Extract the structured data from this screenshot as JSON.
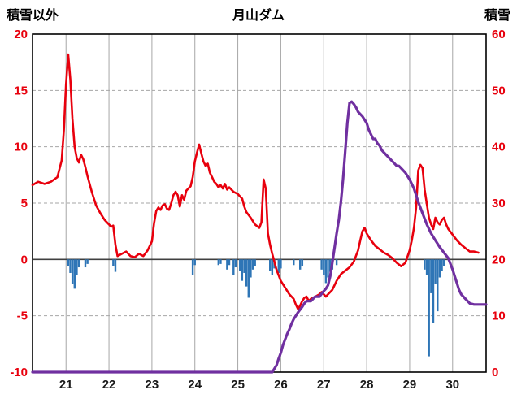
{
  "header": {
    "left_axis_title": "積雪以外",
    "title": "月山ダム",
    "right_axis_title": "積雪"
  },
  "colors": {
    "red_line": "#e8000d",
    "purple_line": "#7030a0",
    "blue_bar": "#2e75b6",
    "grid": "#a6a6a6",
    "zero_line": "#404040",
    "border": "#000000",
    "left_tick_label": "#e8000d",
    "right_tick_label": "#e8000d",
    "x_tick_label": "#1a1a1a"
  },
  "chart_data": {
    "type": "line",
    "title": "月山ダム",
    "left_axis": {
      "label": "積雪以外",
      "min": -10,
      "max": 20,
      "ticks": [
        20,
        15,
        10,
        5,
        0,
        -5,
        -10
      ],
      "tick_labels": [
        "20",
        "15",
        "10",
        "5",
        "0",
        "-5",
        "-10"
      ]
    },
    "right_axis": {
      "label": "積雪",
      "min": 0,
      "max": 60,
      "tick_labels": [
        "60",
        "50",
        "40",
        "30",
        "20",
        "10",
        "0"
      ]
    },
    "x_axis": {
      "min": 20.22,
      "max": 30.78,
      "ticks": [
        21,
        22,
        23,
        24,
        25,
        26,
        27,
        28,
        29,
        30
      ],
      "tick_labels": [
        "21",
        "22",
        "23",
        "24",
        "25",
        "26",
        "27",
        "28",
        "29",
        "30"
      ]
    },
    "grid": {
      "vertical": "solid",
      "horizontal": "dashed",
      "zero_line": "solid"
    },
    "legend": "none",
    "series": [
      {
        "name": "red-line",
        "type": "line",
        "axis": "left",
        "color": "#e8000d",
        "points": [
          [
            20.22,
            6.6
          ],
          [
            20.35,
            6.9
          ],
          [
            20.5,
            6.7
          ],
          [
            20.65,
            6.9
          ],
          [
            20.8,
            7.3
          ],
          [
            20.9,
            8.8
          ],
          [
            20.95,
            11.5
          ],
          [
            21.0,
            15.5
          ],
          [
            21.05,
            18.2
          ],
          [
            21.1,
            16.0
          ],
          [
            21.15,
            12.5
          ],
          [
            21.2,
            10.0
          ],
          [
            21.25,
            9.0
          ],
          [
            21.3,
            8.6
          ],
          [
            21.35,
            9.3
          ],
          [
            21.4,
            8.9
          ],
          [
            21.45,
            8.2
          ],
          [
            21.5,
            7.4
          ],
          [
            21.6,
            6.0
          ],
          [
            21.7,
            4.8
          ],
          [
            21.8,
            4.1
          ],
          [
            21.9,
            3.5
          ],
          [
            22.0,
            3.1
          ],
          [
            22.05,
            2.9
          ],
          [
            22.1,
            3.0
          ],
          [
            22.15,
            1.3
          ],
          [
            22.2,
            0.3
          ],
          [
            22.3,
            0.5
          ],
          [
            22.4,
            0.7
          ],
          [
            22.5,
            0.3
          ],
          [
            22.6,
            0.2
          ],
          [
            22.7,
            0.5
          ],
          [
            22.8,
            0.3
          ],
          [
            22.9,
            0.8
          ],
          [
            23.0,
            1.6
          ],
          [
            23.05,
            3.2
          ],
          [
            23.1,
            4.3
          ],
          [
            23.15,
            4.6
          ],
          [
            23.2,
            4.4
          ],
          [
            23.25,
            4.8
          ],
          [
            23.3,
            4.9
          ],
          [
            23.35,
            4.5
          ],
          [
            23.4,
            4.4
          ],
          [
            23.45,
            5.0
          ],
          [
            23.5,
            5.7
          ],
          [
            23.55,
            6.0
          ],
          [
            23.6,
            5.7
          ],
          [
            23.65,
            4.7
          ],
          [
            23.7,
            5.7
          ],
          [
            23.75,
            5.3
          ],
          [
            23.8,
            6.1
          ],
          [
            23.85,
            6.3
          ],
          [
            23.9,
            6.5
          ],
          [
            23.95,
            7.3
          ],
          [
            24.0,
            8.7
          ],
          [
            24.05,
            9.5
          ],
          [
            24.1,
            10.2
          ],
          [
            24.15,
            9.4
          ],
          [
            24.2,
            8.7
          ],
          [
            24.25,
            8.3
          ],
          [
            24.3,
            8.5
          ],
          [
            24.35,
            7.7
          ],
          [
            24.4,
            7.3
          ],
          [
            24.45,
            6.9
          ],
          [
            24.5,
            6.7
          ],
          [
            24.55,
            6.4
          ],
          [
            24.6,
            6.6
          ],
          [
            24.65,
            6.3
          ],
          [
            24.7,
            6.7
          ],
          [
            24.75,
            6.2
          ],
          [
            24.8,
            6.4
          ],
          [
            24.9,
            6.0
          ],
          [
            25.0,
            5.8
          ],
          [
            25.05,
            5.6
          ],
          [
            25.1,
            5.4
          ],
          [
            25.15,
            4.7
          ],
          [
            25.2,
            4.2
          ],
          [
            25.3,
            3.7
          ],
          [
            25.4,
            3.1
          ],
          [
            25.5,
            2.8
          ],
          [
            25.55,
            3.3
          ],
          [
            25.6,
            7.1
          ],
          [
            25.65,
            6.3
          ],
          [
            25.7,
            2.3
          ],
          [
            25.75,
            1.3
          ],
          [
            25.8,
            0.5
          ],
          [
            25.85,
            -0.2
          ],
          [
            25.9,
            -0.9
          ],
          [
            26.0,
            -1.9
          ],
          [
            26.1,
            -2.5
          ],
          [
            26.2,
            -3.1
          ],
          [
            26.3,
            -3.5
          ],
          [
            26.35,
            -4.0
          ],
          [
            26.4,
            -4.4
          ],
          [
            26.45,
            -4.1
          ],
          [
            26.5,
            -3.7
          ],
          [
            26.55,
            -3.4
          ],
          [
            26.6,
            -3.3
          ],
          [
            26.65,
            -3.7
          ],
          [
            26.7,
            -3.5
          ],
          [
            26.8,
            -3.3
          ],
          [
            26.9,
            -3.1
          ],
          [
            26.95,
            -2.9
          ],
          [
            27.0,
            -3.1
          ],
          [
            27.05,
            -3.3
          ],
          [
            27.1,
            -3.1
          ],
          [
            27.2,
            -2.7
          ],
          [
            27.3,
            -1.9
          ],
          [
            27.4,
            -1.3
          ],
          [
            27.5,
            -1.0
          ],
          [
            27.6,
            -0.7
          ],
          [
            27.7,
            -0.2
          ],
          [
            27.8,
            0.8
          ],
          [
            27.85,
            1.7
          ],
          [
            27.9,
            2.5
          ],
          [
            27.95,
            2.8
          ],
          [
            28.0,
            2.3
          ],
          [
            28.1,
            1.7
          ],
          [
            28.2,
            1.2
          ],
          [
            28.3,
            0.9
          ],
          [
            28.4,
            0.6
          ],
          [
            28.5,
            0.4
          ],
          [
            28.6,
            0.1
          ],
          [
            28.7,
            -0.3
          ],
          [
            28.8,
            -0.6
          ],
          [
            28.9,
            -0.3
          ],
          [
            29.0,
            0.8
          ],
          [
            29.05,
            1.7
          ],
          [
            29.1,
            2.8
          ],
          [
            29.15,
            4.6
          ],
          [
            29.2,
            7.9
          ],
          [
            29.25,
            8.4
          ],
          [
            29.3,
            8.1
          ],
          [
            29.35,
            6.2
          ],
          [
            29.4,
            4.9
          ],
          [
            29.45,
            3.7
          ],
          [
            29.5,
            3.1
          ],
          [
            29.55,
            2.7
          ],
          [
            29.6,
            3.7
          ],
          [
            29.65,
            3.3
          ],
          [
            29.7,
            3.1
          ],
          [
            29.75,
            3.5
          ],
          [
            29.8,
            3.7
          ],
          [
            29.85,
            3.1
          ],
          [
            29.9,
            2.7
          ],
          [
            30.0,
            2.2
          ],
          [
            30.1,
            1.7
          ],
          [
            30.2,
            1.3
          ],
          [
            30.3,
            1.0
          ],
          [
            30.4,
            0.7
          ],
          [
            30.5,
            0.7
          ],
          [
            30.6,
            0.6
          ]
        ]
      },
      {
        "name": "purple-line",
        "type": "line",
        "axis": "right",
        "color": "#7030a0",
        "points": [
          [
            20.22,
            -10
          ],
          [
            25.8,
            -10
          ],
          [
            25.9,
            -9.4
          ],
          [
            25.95,
            -8.8
          ],
          [
            26.0,
            -8.3
          ],
          [
            26.05,
            -7.6
          ],
          [
            26.1,
            -7.1
          ],
          [
            26.15,
            -6.6
          ],
          [
            26.2,
            -6.2
          ],
          [
            26.25,
            -5.7
          ],
          [
            26.3,
            -5.3
          ],
          [
            26.4,
            -4.7
          ],
          [
            26.5,
            -4.2
          ],
          [
            26.55,
            -3.9
          ],
          [
            26.6,
            -3.7
          ],
          [
            26.7,
            -3.7
          ],
          [
            26.8,
            -3.3
          ],
          [
            26.9,
            -3.3
          ],
          [
            27.0,
            -2.8
          ],
          [
            27.05,
            -2.6
          ],
          [
            27.1,
            -2.3
          ],
          [
            27.15,
            -1.5
          ],
          [
            27.2,
            -0.3
          ],
          [
            27.25,
            1.0
          ],
          [
            27.3,
            2.3
          ],
          [
            27.35,
            3.5
          ],
          [
            27.4,
            5.1
          ],
          [
            27.45,
            7.1
          ],
          [
            27.5,
            9.6
          ],
          [
            27.55,
            12.1
          ],
          [
            27.6,
            13.9
          ],
          [
            27.65,
            14.0
          ],
          [
            27.7,
            13.8
          ],
          [
            27.75,
            13.5
          ],
          [
            27.8,
            13.1
          ],
          [
            27.9,
            12.7
          ],
          [
            28.0,
            12.1
          ],
          [
            28.05,
            11.5
          ],
          [
            28.1,
            11.1
          ],
          [
            28.15,
            10.7
          ],
          [
            28.2,
            10.7
          ],
          [
            28.25,
            10.3
          ],
          [
            28.3,
            10.1
          ],
          [
            28.35,
            9.7
          ],
          [
            28.4,
            9.5
          ],
          [
            28.5,
            9.1
          ],
          [
            28.6,
            8.7
          ],
          [
            28.7,
            8.3
          ],
          [
            28.75,
            8.3
          ],
          [
            28.8,
            8.1
          ],
          [
            28.9,
            7.7
          ],
          [
            29.0,
            7.1
          ],
          [
            29.05,
            6.7
          ],
          [
            29.1,
            6.3
          ],
          [
            29.15,
            5.7
          ],
          [
            29.2,
            5.1
          ],
          [
            29.3,
            4.1
          ],
          [
            29.4,
            3.1
          ],
          [
            29.5,
            2.3
          ],
          [
            29.6,
            1.7
          ],
          [
            29.7,
            1.1
          ],
          [
            29.8,
            0.6
          ],
          [
            29.9,
            0.1
          ],
          [
            30.0,
            -0.9
          ],
          [
            30.05,
            -1.5
          ],
          [
            30.1,
            -2.1
          ],
          [
            30.15,
            -2.7
          ],
          [
            30.2,
            -3.1
          ],
          [
            30.3,
            -3.5
          ],
          [
            30.4,
            -3.9
          ],
          [
            30.5,
            -4.0
          ],
          [
            30.6,
            -4.0
          ],
          [
            30.78,
            -4.0
          ]
        ]
      },
      {
        "name": "blue-bars",
        "type": "bar",
        "axis": "left",
        "color": "#2e75b6",
        "points": [
          [
            21.05,
            -0.6
          ],
          [
            21.1,
            -1.2
          ],
          [
            21.15,
            -2.2
          ],
          [
            21.2,
            -2.6
          ],
          [
            21.25,
            -1.4
          ],
          [
            21.3,
            -0.7
          ],
          [
            21.45,
            -0.7
          ],
          [
            21.5,
            -0.4
          ],
          [
            22.1,
            -0.6
          ],
          [
            22.15,
            -1.1
          ],
          [
            23.95,
            -1.4
          ],
          [
            24.0,
            -0.5
          ],
          [
            24.55,
            -0.5
          ],
          [
            24.6,
            -0.4
          ],
          [
            24.75,
            -0.9
          ],
          [
            24.8,
            -0.5
          ],
          [
            24.9,
            -1.4
          ],
          [
            24.95,
            -0.7
          ],
          [
            25.05,
            -1.0
          ],
          [
            25.1,
            -1.9
          ],
          [
            25.15,
            -1.2
          ],
          [
            25.2,
            -2.4
          ],
          [
            25.25,
            -3.4
          ],
          [
            25.3,
            -1.6
          ],
          [
            25.35,
            -0.9
          ],
          [
            25.4,
            -0.6
          ],
          [
            25.75,
            -1.0
          ],
          [
            25.8,
            -1.4
          ],
          [
            25.85,
            -0.8
          ],
          [
            25.95,
            -1.2
          ],
          [
            26.0,
            -0.8
          ],
          [
            26.3,
            -0.5
          ],
          [
            26.45,
            -0.9
          ],
          [
            26.5,
            -0.6
          ],
          [
            26.95,
            -0.9
          ],
          [
            27.0,
            -1.4
          ],
          [
            27.05,
            -2.1
          ],
          [
            27.1,
            -1.6
          ],
          [
            27.15,
            -1.1
          ],
          [
            27.2,
            -0.9
          ],
          [
            27.3,
            -0.5
          ],
          [
            29.35,
            -0.9
          ],
          [
            29.4,
            -1.4
          ],
          [
            29.45,
            -8.6
          ],
          [
            29.5,
            -3.0
          ],
          [
            29.55,
            -5.6
          ],
          [
            29.6,
            -2.2
          ],
          [
            29.65,
            -4.6
          ],
          [
            29.7,
            -1.6
          ],
          [
            29.75,
            -1.0
          ],
          [
            29.8,
            -0.6
          ]
        ]
      }
    ]
  }
}
